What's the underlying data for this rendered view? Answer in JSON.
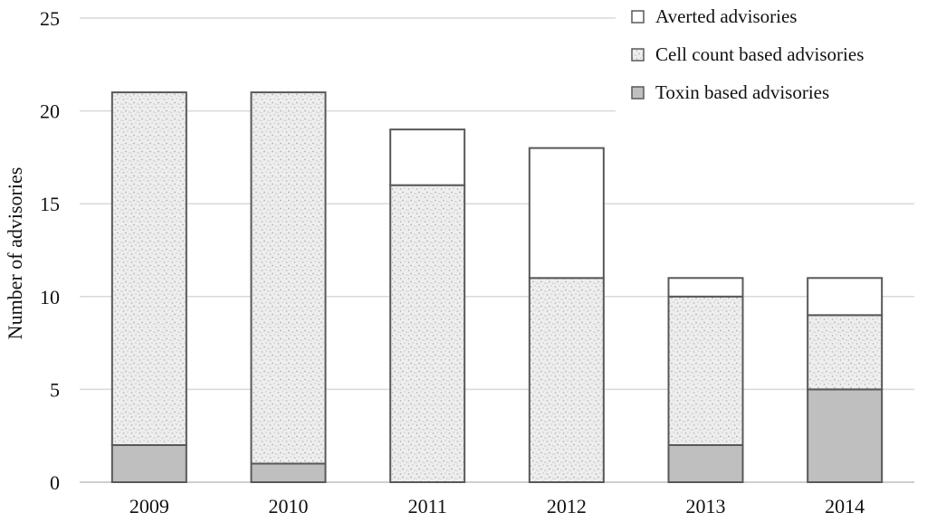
{
  "chart_data": {
    "type": "bar",
    "stacked": true,
    "categories": [
      "2009",
      "2010",
      "2011",
      "2012",
      "2013",
      "2014"
    ],
    "series": [
      {
        "name": "Toxin based advisories",
        "values": [
          2,
          1,
          0,
          0,
          2,
          5
        ],
        "color": "#bfbfbf",
        "pattern": "solid"
      },
      {
        "name": "Cell count based advisories",
        "values": [
          19,
          20,
          16,
          11,
          8,
          4
        ],
        "color": "#e6e6e6",
        "pattern": "dotted"
      },
      {
        "name": "Averted advisories",
        "values": [
          0,
          0,
          3,
          7,
          1,
          2
        ],
        "color": "#ffffff",
        "pattern": "solid"
      }
    ],
    "legend_order": [
      "Averted advisories",
      "Cell count based advisories",
      "Toxin based advisories"
    ],
    "xlabel": "",
    "ylabel": "Number of advisories",
    "ylim": [
      0,
      25
    ],
    "yticks": [
      0,
      5,
      10,
      15,
      20,
      25
    ],
    "grid": true,
    "legend_position": "top-right"
  }
}
